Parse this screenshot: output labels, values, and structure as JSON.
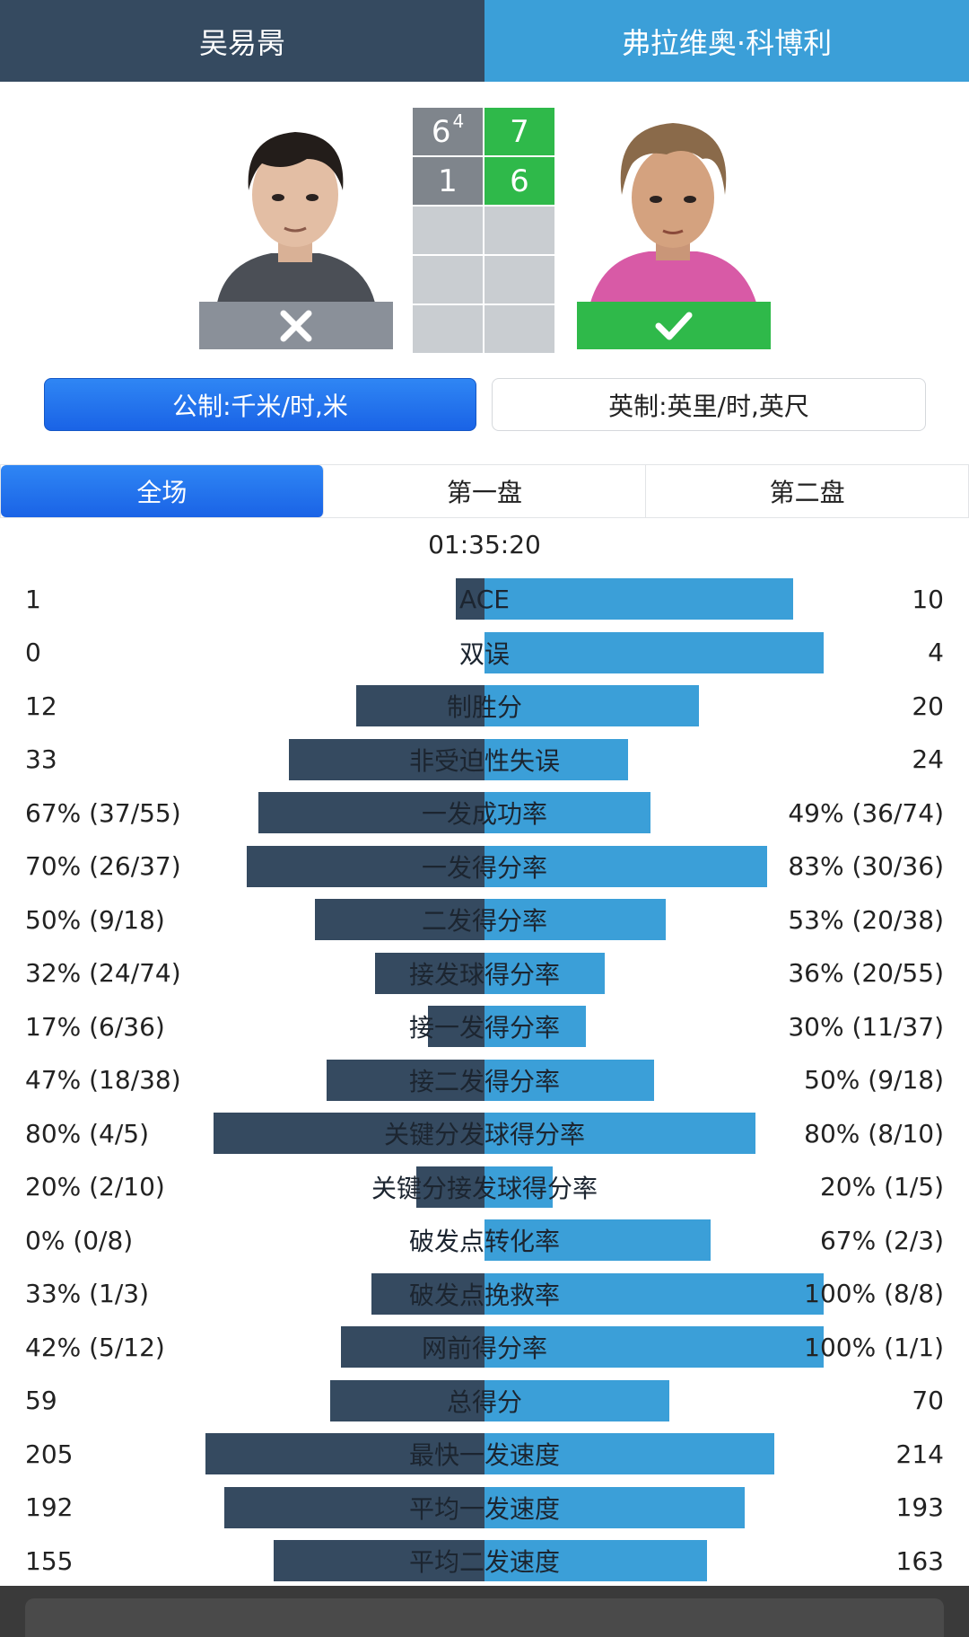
{
  "header": {
    "player1": "吴易昺",
    "player2": "弗拉维奥·科博利"
  },
  "players": {
    "player1_photo_icon": "player-photo",
    "player2_photo_icon": "player-photo",
    "player1_result_icon": "cross-icon",
    "player2_result_icon": "check-icon"
  },
  "score": {
    "sets": [
      {
        "p1": "6",
        "p1_tiebreak": "4",
        "p2": "7"
      },
      {
        "p1": "1",
        "p1_tiebreak": "",
        "p2": "6"
      }
    ]
  },
  "units": {
    "metric": "公制:千米/时,米",
    "imperial": "英制:英里/时,英尺"
  },
  "tabs": [
    "全场",
    "第一盘",
    "第二盘"
  ],
  "duration": "01:35:20",
  "stats": [
    {
      "label": "ACE",
      "p1": "1",
      "p2": "10",
      "p1_ratio": 0.075,
      "p2_ratio": 0.82
    },
    {
      "label": "双误",
      "p1": "0",
      "p2": "4",
      "p1_ratio": 0.0,
      "p2_ratio": 0.9
    },
    {
      "label": "制胜分",
      "p1": "12",
      "p2": "20",
      "p1_ratio": 0.34,
      "p2_ratio": 0.57
    },
    {
      "label": "非受迫性失误",
      "p1": "33",
      "p2": "24",
      "p1_ratio": 0.52,
      "p2_ratio": 0.38
    },
    {
      "label": "一发成功率",
      "p1": "67% (37/55)",
      "p2": "49% (36/74)",
      "p1_ratio": 0.6,
      "p2_ratio": 0.44
    },
    {
      "label": "一发得分率",
      "p1": "70% (26/37)",
      "p2": "83% (30/36)",
      "p1_ratio": 0.63,
      "p2_ratio": 0.75
    },
    {
      "label": "二发得分率",
      "p1": "50% (9/18)",
      "p2": "53% (20/38)",
      "p1_ratio": 0.45,
      "p2_ratio": 0.48
    },
    {
      "label": "接发球得分率",
      "p1": "32% (24/74)",
      "p2": "36% (20/55)",
      "p1_ratio": 0.29,
      "p2_ratio": 0.32
    },
    {
      "label": "接一发得分率",
      "p1": "17% (6/36)",
      "p2": "30% (11/37)",
      "p1_ratio": 0.15,
      "p2_ratio": 0.27
    },
    {
      "label": "接二发得分率",
      "p1": "47% (18/38)",
      "p2": "50% (9/18)",
      "p1_ratio": 0.42,
      "p2_ratio": 0.45
    },
    {
      "label": "关键分发球得分率",
      "p1": "80% (4/5)",
      "p2": "80% (8/10)",
      "p1_ratio": 0.72,
      "p2_ratio": 0.72
    },
    {
      "label": "关键分接发球得分率",
      "p1": "20% (2/10)",
      "p2": "20% (1/5)",
      "p1_ratio": 0.18,
      "p2_ratio": 0.18
    },
    {
      "label": "破发点转化率",
      "p1": "0% (0/8)",
      "p2": "67% (2/3)",
      "p1_ratio": 0.0,
      "p2_ratio": 0.6
    },
    {
      "label": "破发点挽救率",
      "p1": "33% (1/3)",
      "p2": "100% (8/8)",
      "p1_ratio": 0.3,
      "p2_ratio": 0.9
    },
    {
      "label": "网前得分率",
      "p1": "42% (5/12)",
      "p2": "100% (1/1)",
      "p1_ratio": 0.38,
      "p2_ratio": 0.9
    },
    {
      "label": "总得分",
      "p1": "59",
      "p2": "70",
      "p1_ratio": 0.41,
      "p2_ratio": 0.49
    },
    {
      "label": "最快一发速度",
      "p1": "205",
      "p2": "214",
      "p1_ratio": 0.74,
      "p2_ratio": 0.77
    },
    {
      "label": "平均一发速度",
      "p1": "192",
      "p2": "193",
      "p1_ratio": 0.69,
      "p2_ratio": 0.69
    },
    {
      "label": "平均二发速度",
      "p1": "155",
      "p2": "163",
      "p1_ratio": 0.56,
      "p2_ratio": 0.59
    }
  ],
  "colors": {
    "player1": "#354a60",
    "player2": "#3b9fd8",
    "win": "#2fb94a",
    "loss": "#8a9099"
  }
}
